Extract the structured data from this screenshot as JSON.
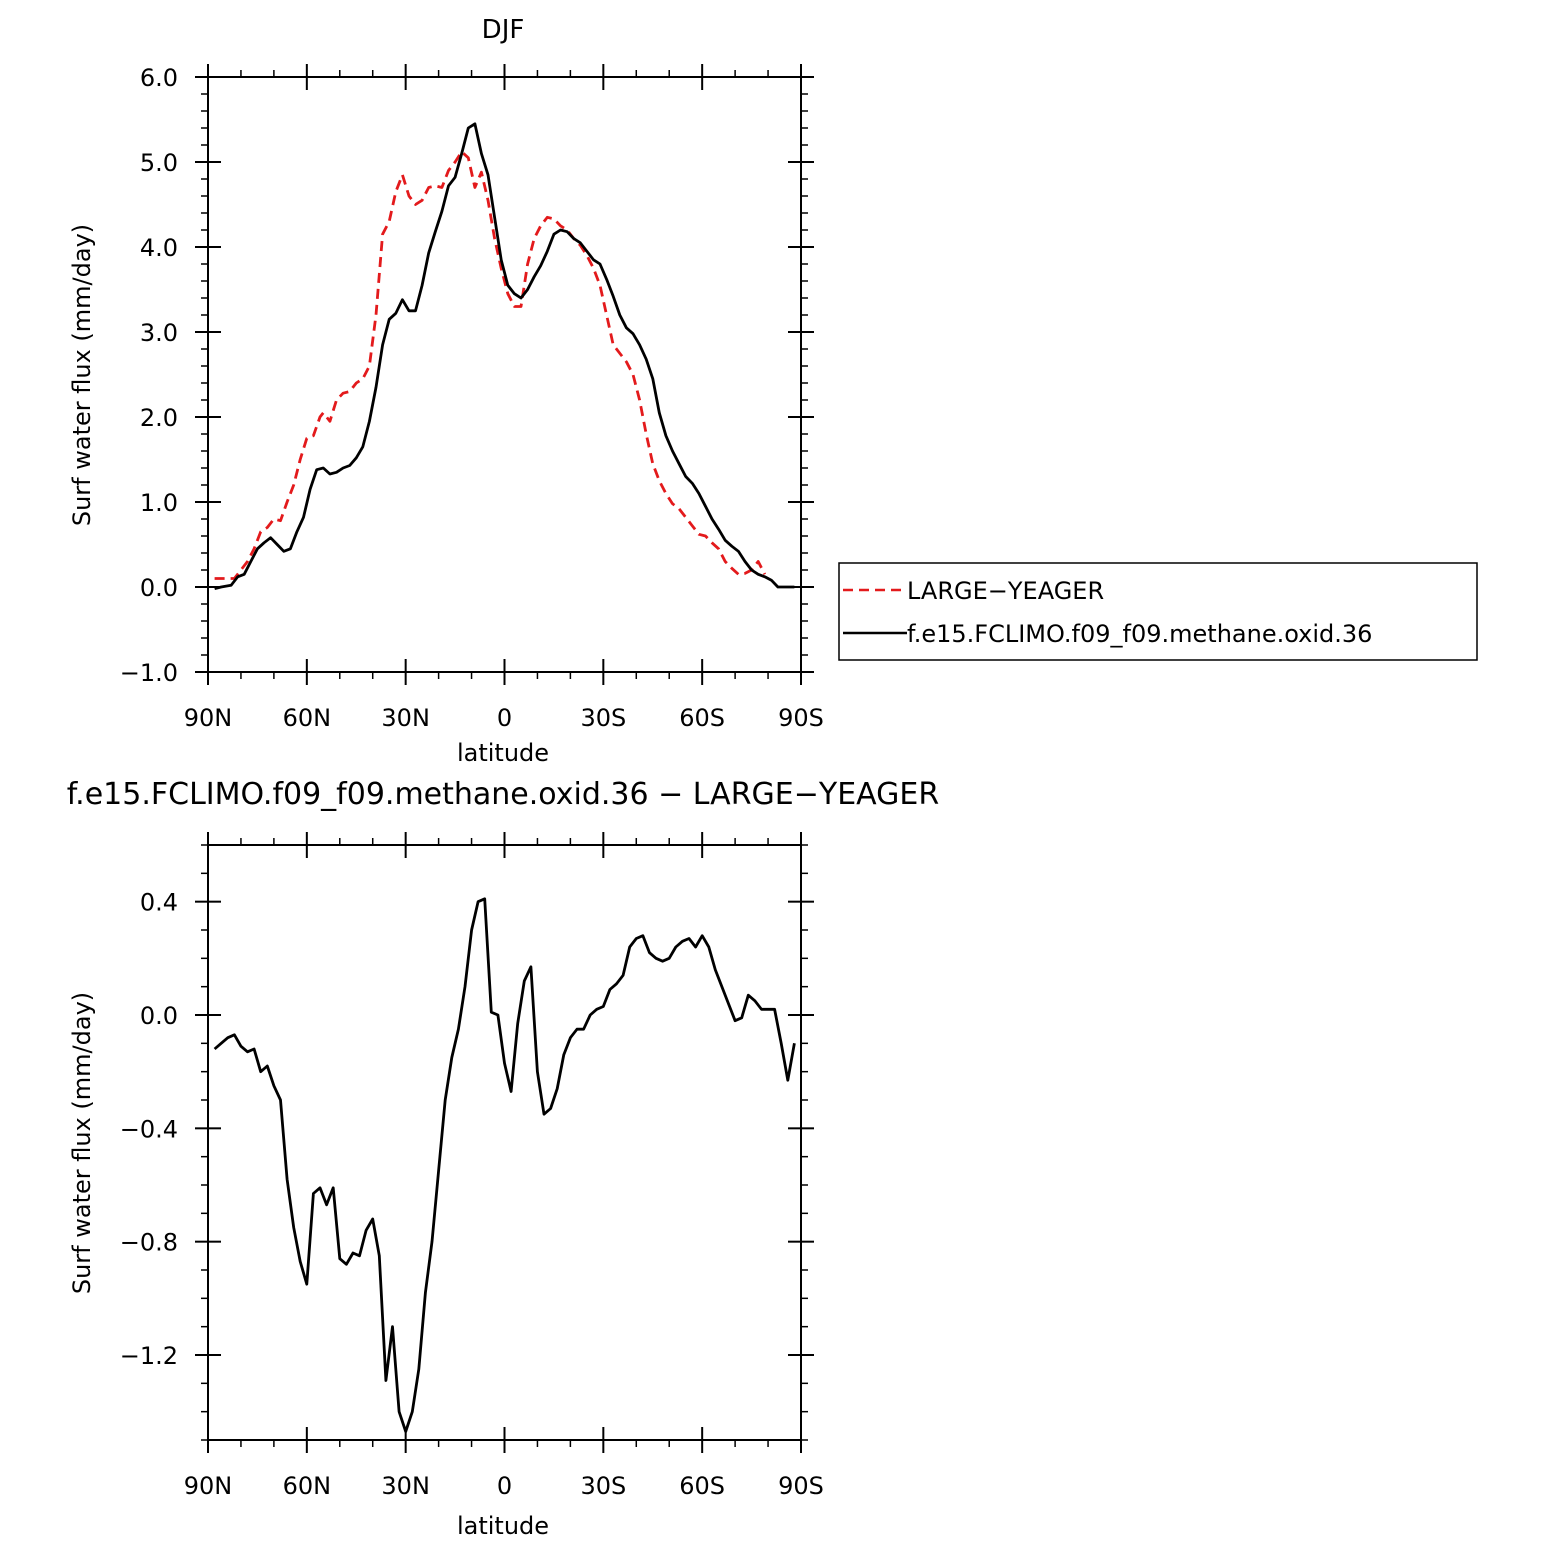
{
  "chart_data": [
    {
      "type": "line",
      "title": "DJF",
      "xlabel": "latitude",
      "ylabel": "Surf water flux (mm/day)",
      "xlim": [
        90,
        -90
      ],
      "ylim": [
        -1.0,
        6.0
      ],
      "xticks": [
        90,
        60,
        30,
        0,
        -30,
        -60,
        -90
      ],
      "xtick_labels": [
        "90N",
        "60N",
        "30N",
        "0",
        "30S",
        "60S",
        "90S"
      ],
      "yticks": [
        -1.0,
        0.0,
        1.0,
        2.0,
        3.0,
        4.0,
        5.0,
        6.0
      ],
      "ytick_labels": [
        "−1.0",
        "0.0",
        "1.0",
        "2.0",
        "3.0",
        "4.0",
        "5.0",
        "6.0"
      ],
      "legend": "right",
      "grid": false,
      "series": [
        {
          "name": "LARGE−YEAGER",
          "color": "#e31a1c",
          "style": "dashed",
          "points": [
            [
              88,
              0.1
            ],
            [
              85,
              0.1
            ],
            [
              82,
              0.1
            ],
            [
              80,
              0.2
            ],
            [
              78,
              0.3
            ],
            [
              76,
              0.45
            ],
            [
              74,
              0.65
            ],
            [
              72,
              0.7
            ],
            [
              70,
              0.8
            ],
            [
              68,
              0.78
            ],
            [
              66,
              1.0
            ],
            [
              64,
              1.2
            ],
            [
              62,
              1.5
            ],
            [
              60,
              1.75
            ],
            [
              58,
              1.78
            ],
            [
              56,
              2.0
            ],
            [
              55,
              2.05
            ],
            [
              53,
              1.95
            ],
            [
              51,
              2.2
            ],
            [
              49,
              2.28
            ],
            [
              47,
              2.3
            ],
            [
              45,
              2.4
            ],
            [
              43,
              2.45
            ],
            [
              41,
              2.6
            ],
            [
              39,
              3.2
            ],
            [
              37,
              4.15
            ],
            [
              35,
              4.3
            ],
            [
              33,
              4.65
            ],
            [
              31,
              4.85
            ],
            [
              29,
              4.6
            ],
            [
              27,
              4.5
            ],
            [
              25,
              4.55
            ],
            [
              23,
              4.7
            ],
            [
              21,
              4.72
            ],
            [
              19,
              4.7
            ],
            [
              17,
              4.9
            ],
            [
              15,
              5.0
            ],
            [
              13,
              5.12
            ],
            [
              11,
              5.05
            ],
            [
              9,
              4.7
            ],
            [
              7,
              4.88
            ],
            [
              5,
              4.55
            ],
            [
              3,
              4.1
            ],
            [
              1,
              3.75
            ],
            [
              -1,
              3.45
            ],
            [
              -3,
              3.3
            ],
            [
              -5,
              3.3
            ],
            [
              -7,
              3.8
            ],
            [
              -9,
              4.1
            ],
            [
              -11,
              4.25
            ],
            [
              -13,
              4.35
            ],
            [
              -15,
              4.33
            ],
            [
              -17,
              4.25
            ],
            [
              -19,
              4.2
            ],
            [
              -21,
              4.1
            ],
            [
              -23,
              4.02
            ],
            [
              -25,
              3.9
            ],
            [
              -27,
              3.75
            ],
            [
              -29,
              3.55
            ],
            [
              -31,
              3.2
            ],
            [
              -33,
              2.85
            ],
            [
              -35,
              2.75
            ],
            [
              -37,
              2.65
            ],
            [
              -39,
              2.5
            ],
            [
              -41,
              2.2
            ],
            [
              -43,
              1.8
            ],
            [
              -45,
              1.45
            ],
            [
              -47,
              1.25
            ],
            [
              -49,
              1.1
            ],
            [
              -51,
              0.98
            ],
            [
              -53,
              0.92
            ],
            [
              -55,
              0.82
            ],
            [
              -57,
              0.72
            ],
            [
              -59,
              0.62
            ],
            [
              -61,
              0.6
            ],
            [
              -63,
              0.52
            ],
            [
              -65,
              0.45
            ],
            [
              -67,
              0.3
            ],
            [
              -69,
              0.22
            ],
            [
              -71,
              0.15
            ],
            [
              -73,
              0.16
            ],
            [
              -75,
              0.2
            ],
            [
              -77,
              0.3
            ],
            [
              -79,
              0.15
            ]
          ]
        },
        {
          "name": "f.e15.FCLIMO.f09_f09.methane.oxid.36",
          "color": "#000000",
          "style": "solid",
          "points": [
            [
              88,
              -0.02
            ],
            [
              86,
              0.0
            ],
            [
              83,
              0.02
            ],
            [
              81,
              0.12
            ],
            [
              79,
              0.15
            ],
            [
              77,
              0.3
            ],
            [
              75,
              0.45
            ],
            [
              73,
              0.52
            ],
            [
              71,
              0.58
            ],
            [
              69,
              0.5
            ],
            [
              67,
              0.42
            ],
            [
              65,
              0.45
            ],
            [
              63,
              0.65
            ],
            [
              61,
              0.82
            ],
            [
              59,
              1.15
            ],
            [
              57,
              1.38
            ],
            [
              55,
              1.4
            ],
            [
              53,
              1.33
            ],
            [
              51,
              1.35
            ],
            [
              49,
              1.4
            ],
            [
              47,
              1.43
            ],
            [
              45,
              1.52
            ],
            [
              43,
              1.65
            ],
            [
              41,
              1.95
            ],
            [
              39,
              2.35
            ],
            [
              37,
              2.85
            ],
            [
              35,
              3.15
            ],
            [
              33,
              3.22
            ],
            [
              31,
              3.38
            ],
            [
              29,
              3.25
            ],
            [
              27,
              3.25
            ],
            [
              25,
              3.55
            ],
            [
              23,
              3.93
            ],
            [
              21,
              4.18
            ],
            [
              19,
              4.42
            ],
            [
              17,
              4.72
            ],
            [
              15,
              4.82
            ],
            [
              13,
              5.1
            ],
            [
              11,
              5.4
            ],
            [
              9,
              5.45
            ],
            [
              7,
              5.1
            ],
            [
              5,
              4.85
            ],
            [
              3,
              4.35
            ],
            [
              1,
              3.85
            ],
            [
              -1,
              3.55
            ],
            [
              -3,
              3.45
            ],
            [
              -5,
              3.4
            ],
            [
              -7,
              3.5
            ],
            [
              -9,
              3.65
            ],
            [
              -11,
              3.78
            ],
            [
              -13,
              3.95
            ],
            [
              -15,
              4.15
            ],
            [
              -17,
              4.2
            ],
            [
              -19,
              4.18
            ],
            [
              -21,
              4.1
            ],
            [
              -23,
              4.05
            ],
            [
              -25,
              3.95
            ],
            [
              -27,
              3.85
            ],
            [
              -29,
              3.8
            ],
            [
              -31,
              3.62
            ],
            [
              -33,
              3.42
            ],
            [
              -35,
              3.2
            ],
            [
              -37,
              3.05
            ],
            [
              -39,
              2.98
            ],
            [
              -41,
              2.85
            ],
            [
              -43,
              2.68
            ],
            [
              -45,
              2.45
            ],
            [
              -47,
              2.05
            ],
            [
              -49,
              1.78
            ],
            [
              -51,
              1.6
            ],
            [
              -53,
              1.45
            ],
            [
              -55,
              1.3
            ],
            [
              -57,
              1.22
            ],
            [
              -59,
              1.1
            ],
            [
              -61,
              0.95
            ],
            [
              -63,
              0.8
            ],
            [
              -65,
              0.68
            ],
            [
              -67,
              0.55
            ],
            [
              -69,
              0.48
            ],
            [
              -71,
              0.42
            ],
            [
              -73,
              0.3
            ],
            [
              -75,
              0.2
            ],
            [
              -77,
              0.15
            ],
            [
              -79,
              0.12
            ],
            [
              -81,
              0.08
            ],
            [
              -83,
              0.0
            ],
            [
              -86,
              0.0
            ],
            [
              -88,
              0.0
            ]
          ]
        }
      ]
    },
    {
      "type": "line",
      "title": "f.e15.FCLIMO.f09_f09.methane.oxid.36 − LARGE−YEAGER",
      "xlabel": "latitude",
      "ylabel": "Surf water flux (mm/day)",
      "xlim": [
        90,
        -90
      ],
      "ylim": [
        -1.5,
        0.6
      ],
      "xticks": [
        90,
        60,
        30,
        0,
        -30,
        -60,
        -90
      ],
      "xtick_labels": [
        "90N",
        "60N",
        "30N",
        "0",
        "30S",
        "60S",
        "90S"
      ],
      "yticks": [
        -1.2,
        -0.8,
        -0.4,
        0.0,
        0.4
      ],
      "ytick_labels": [
        "−1.2",
        "−0.8",
        "−0.4",
        "0.0",
        "0.4"
      ],
      "grid": false,
      "series": [
        {
          "name": "",
          "color": "#000000",
          "style": "solid",
          "points": [
            [
              88,
              -0.12
            ],
            [
              86,
              -0.1
            ],
            [
              84,
              -0.08
            ],
            [
              82,
              -0.07
            ],
            [
              80,
              -0.11
            ],
            [
              78,
              -0.13
            ],
            [
              76,
              -0.12
            ],
            [
              74,
              -0.2
            ],
            [
              72,
              -0.18
            ],
            [
              70,
              -0.25
            ],
            [
              68,
              -0.3
            ],
            [
              66,
              -0.58
            ],
            [
              64,
              -0.75
            ],
            [
              62,
              -0.87
            ],
            [
              60,
              -0.95
            ],
            [
              58,
              -0.63
            ],
            [
              56,
              -0.61
            ],
            [
              54,
              -0.67
            ],
            [
              52,
              -0.61
            ],
            [
              50,
              -0.86
            ],
            [
              48,
              -0.88
            ],
            [
              46,
              -0.84
            ],
            [
              44,
              -0.85
            ],
            [
              42,
              -0.76
            ],
            [
              40,
              -0.72
            ],
            [
              38,
              -0.85
            ],
            [
              36,
              -1.29
            ],
            [
              34,
              -1.1
            ],
            [
              32,
              -1.4
            ],
            [
              30,
              -1.47
            ],
            [
              28,
              -1.4
            ],
            [
              26,
              -1.25
            ],
            [
              24,
              -0.98
            ],
            [
              22,
              -0.8
            ],
            [
              20,
              -0.55
            ],
            [
              18,
              -0.3
            ],
            [
              16,
              -0.15
            ],
            [
              14,
              -0.05
            ],
            [
              12,
              0.1
            ],
            [
              10,
              0.3
            ],
            [
              8,
              0.4
            ],
            [
              6,
              0.41
            ],
            [
              4,
              0.01
            ],
            [
              2,
              0.0
            ],
            [
              0,
              -0.17
            ],
            [
              -2,
              -0.27
            ],
            [
              -4,
              -0.03
            ],
            [
              -6,
              0.12
            ],
            [
              -8,
              0.17
            ],
            [
              -10,
              -0.2
            ],
            [
              -12,
              -0.35
            ],
            [
              -14,
              -0.33
            ],
            [
              -16,
              -0.26
            ],
            [
              -18,
              -0.14
            ],
            [
              -20,
              -0.08
            ],
            [
              -22,
              -0.05
            ],
            [
              -24,
              -0.05
            ],
            [
              -26,
              0.0
            ],
            [
              -28,
              0.02
            ],
            [
              -30,
              0.03
            ],
            [
              -32,
              0.09
            ],
            [
              -34,
              0.11
            ],
            [
              -36,
              0.14
            ],
            [
              -38,
              0.24
            ],
            [
              -40,
              0.27
            ],
            [
              -42,
              0.28
            ],
            [
              -44,
              0.22
            ],
            [
              -46,
              0.2
            ],
            [
              -48,
              0.19
            ],
            [
              -50,
              0.2
            ],
            [
              -52,
              0.24
            ],
            [
              -54,
              0.26
            ],
            [
              -56,
              0.27
            ],
            [
              -58,
              0.24
            ],
            [
              -60,
              0.28
            ],
            [
              -62,
              0.24
            ],
            [
              -64,
              0.16
            ],
            [
              -66,
              0.1
            ],
            [
              -68,
              0.04
            ],
            [
              -70,
              -0.02
            ],
            [
              -72,
              -0.01
            ],
            [
              -74,
              0.07
            ],
            [
              -76,
              0.05
            ],
            [
              -78,
              0.02
            ],
            [
              -80,
              0.02
            ],
            [
              -82,
              0.02
            ],
            [
              -84,
              -0.1
            ],
            [
              -86,
              -0.23
            ],
            [
              -88,
              -0.1
            ]
          ]
        }
      ]
    }
  ]
}
